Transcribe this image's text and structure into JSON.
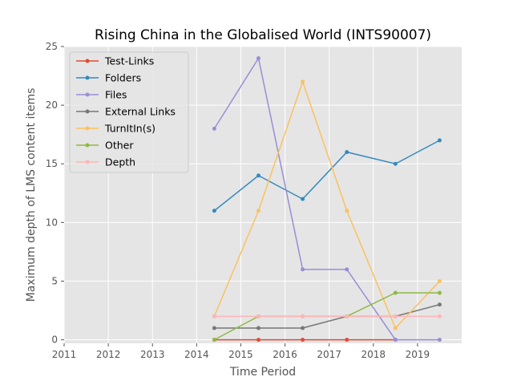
{
  "chart_data": {
    "type": "line",
    "title": "Rising China in the Globalised World (INTS90007)",
    "xlabel": "Time Period",
    "ylabel": "Maximum depth of LMS content items",
    "xlim": [
      2011,
      2020
    ],
    "ylim": [
      -0.3,
      25
    ],
    "xticks": [
      2011,
      2012,
      2013,
      2014,
      2015,
      2016,
      2017,
      2018,
      2019
    ],
    "yticks": [
      0,
      5,
      10,
      15,
      20,
      25
    ],
    "grid": true,
    "legend_position": "top-left",
    "x": [
      2014.4,
      2015.4,
      2016.4,
      2017.4,
      2018.5,
      2019.5
    ],
    "series": [
      {
        "name": "Test-Links",
        "color": "#E24A33",
        "values": [
          0,
          0,
          0,
          0,
          0,
          null
        ]
      },
      {
        "name": "Folders",
        "color": "#348ABD",
        "values": [
          11,
          14,
          12,
          16,
          15,
          17
        ]
      },
      {
        "name": "Files",
        "color": "#988ED5",
        "values": [
          18,
          24,
          6,
          6,
          0,
          0
        ]
      },
      {
        "name": "External Links",
        "color": "#777777",
        "values": [
          1,
          1,
          1,
          2,
          2,
          3
        ]
      },
      {
        "name": "TurnItIn(s)",
        "color": "#FBC15E",
        "values": [
          2,
          11,
          22,
          11,
          1,
          5
        ]
      },
      {
        "name": "Other",
        "color": "#8EBA42",
        "values": [
          0,
          2,
          2,
          2,
          4,
          4
        ]
      },
      {
        "name": "Depth",
        "color": "#FFB5B8",
        "values": [
          2,
          2,
          2,
          2,
          2,
          2
        ]
      }
    ]
  }
}
